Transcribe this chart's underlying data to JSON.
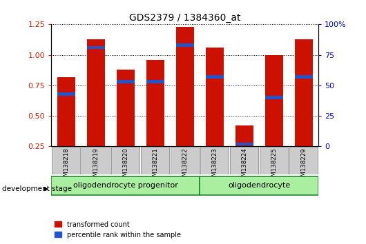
{
  "title": "GDS2379 / 1384360_at",
  "samples": [
    "GSM138218",
    "GSM138219",
    "GSM138220",
    "GSM138221",
    "GSM138222",
    "GSM138223",
    "GSM138224",
    "GSM138225",
    "GSM138229"
  ],
  "red_values": [
    0.82,
    1.13,
    0.88,
    0.96,
    1.23,
    1.06,
    0.42,
    1.0,
    1.13
  ],
  "blue_values": [
    0.68,
    1.06,
    0.78,
    0.78,
    1.08,
    0.82,
    0.27,
    0.65,
    0.82
  ],
  "ylim_left": [
    0.25,
    1.25
  ],
  "ylim_right": [
    0,
    100
  ],
  "yticks_left": [
    0.25,
    0.5,
    0.75,
    1.0,
    1.25
  ],
  "yticks_right": [
    0,
    25,
    50,
    75,
    100
  ],
  "bar_color": "#cc1100",
  "blue_color": "#2255cc",
  "groups": [
    {
      "label": "oligodendrocyte progenitor",
      "indices": [
        0,
        1,
        2,
        3,
        4
      ],
      "color": "#aaeea0"
    },
    {
      "label": "oligodendrocyte",
      "indices": [
        5,
        6,
        7,
        8
      ],
      "color": "#aaeea0"
    }
  ],
  "group_label_prefix": "development stage",
  "bar_width": 0.6,
  "legend_items": [
    {
      "color": "#cc1100",
      "label": "transformed count"
    },
    {
      "color": "#2255cc",
      "label": "percentile rank within the sample"
    }
  ],
  "tick_label_color_left": "#cc2200",
  "tick_label_color_right": "#0000cc",
  "xlabel_bg": "#cccccc",
  "xlabel_edge": "#999999",
  "group_border_color": "#228833",
  "group_text_color": "#000000"
}
